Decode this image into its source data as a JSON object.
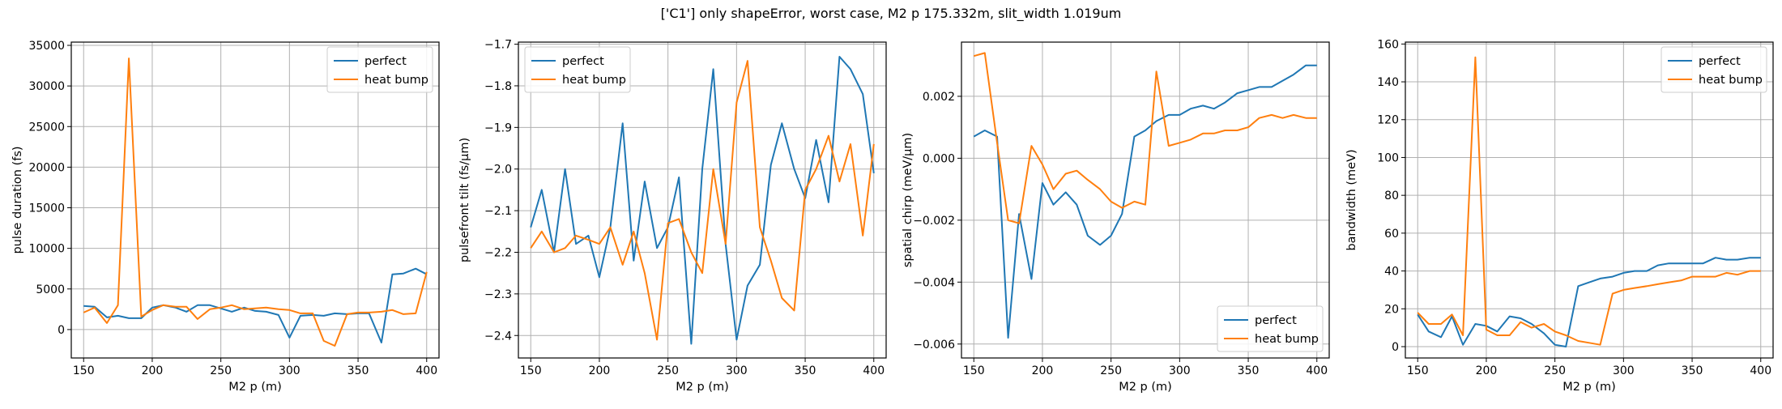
{
  "title": "['C1'] only shapeError, worst case, M2 p 175.332m, slit_width 1.019um",
  "colors": {
    "perfect": "#1f77b4",
    "heat_bump": "#ff7f0e"
  },
  "chart_data": [
    {
      "type": "line",
      "xlabel": "M2 p (m)",
      "ylabel": "pulse duration (fs)",
      "xlim": [
        141,
        409
      ],
      "ylim": [
        -3500,
        35400
      ],
      "xticks": [
        150,
        200,
        250,
        300,
        350,
        400
      ],
      "xtick_labels": [
        "150",
        "200",
        "250",
        "300",
        "350",
        "400"
      ],
      "yticks": [
        0,
        5000,
        10000,
        15000,
        20000,
        25000,
        30000,
        35000
      ],
      "ytick_labels": [
        "0",
        "5000",
        "10000",
        "15000",
        "20000",
        "25000",
        "30000",
        "35000"
      ],
      "grid": true,
      "legend_loc": "upper right",
      "x": [
        150,
        158,
        167,
        175,
        183,
        192,
        200,
        208,
        217,
        225,
        233,
        242,
        250,
        258,
        267,
        275,
        283,
        292,
        300,
        308,
        317,
        325,
        333,
        342,
        350,
        358,
        367,
        375,
        383,
        392,
        400
      ],
      "series": [
        {
          "name": "perfect",
          "color": "#1f77b4",
          "values": [
            2900,
            2800,
            1500,
            1700,
            1400,
            1400,
            2700,
            3000,
            2700,
            2200,
            3000,
            3000,
            2600,
            2200,
            2700,
            2300,
            2200,
            1800,
            -1000,
            1700,
            1800,
            1700,
            2000,
            1900,
            2000,
            2000,
            -1600,
            6800,
            6900,
            7500,
            6800
          ]
        },
        {
          "name": "heat bump",
          "color": "#ff7f0e",
          "values": [
            2100,
            2700,
            800,
            3000,
            33400,
            1600,
            2400,
            3000,
            2800,
            2800,
            1300,
            2500,
            2700,
            3000,
            2500,
            2600,
            2700,
            2500,
            2400,
            2000,
            2000,
            -1400,
            -2000,
            1900,
            2100,
            2100,
            2200,
            2400,
            1900,
            2000,
            7100
          ]
        }
      ]
    },
    {
      "type": "line",
      "xlabel": "M2 p (m)",
      "ylabel": "pulsefront tilt (fs/μm)",
      "xlim": [
        141,
        409
      ],
      "ylim": [
        -2.454,
        -1.695
      ],
      "xticks": [
        150,
        200,
        250,
        300,
        350,
        400
      ],
      "xtick_labels": [
        "150",
        "200",
        "250",
        "300",
        "350",
        "400"
      ],
      "yticks": [
        -2.4,
        -2.3,
        -2.2,
        -2.1,
        -2.0,
        -1.9,
        -1.8,
        -1.7
      ],
      "ytick_labels": [
        "−2.4",
        "−2.3",
        "−2.2",
        "−2.1",
        "−2.0",
        "−1.9",
        "−1.8",
        "−1.7"
      ],
      "grid": true,
      "legend_loc": "upper left",
      "x": [
        150,
        158,
        167,
        175,
        183,
        192,
        200,
        208,
        217,
        225,
        233,
        242,
        250,
        258,
        267,
        275,
        283,
        292,
        300,
        308,
        317,
        325,
        333,
        342,
        350,
        358,
        367,
        375,
        383,
        392,
        400
      ],
      "series": [
        {
          "name": "perfect",
          "color": "#1f77b4",
          "values": [
            -2.14,
            -2.05,
            -2.2,
            -2.0,
            -2.18,
            -2.16,
            -2.26,
            -2.14,
            -1.89,
            -2.22,
            -2.03,
            -2.19,
            -2.14,
            -2.02,
            -2.42,
            -2.0,
            -1.76,
            -2.18,
            -2.41,
            -2.28,
            -2.23,
            -1.99,
            -1.89,
            -2.0,
            -2.07,
            -1.93,
            -2.08,
            -1.73,
            -1.76,
            -1.82,
            -2.01
          ]
        },
        {
          "name": "heat bump",
          "color": "#ff7f0e",
          "values": [
            -2.19,
            -2.15,
            -2.2,
            -2.19,
            -2.16,
            -2.17,
            -2.18,
            -2.14,
            -2.23,
            -2.15,
            -2.25,
            -2.41,
            -2.13,
            -2.12,
            -2.2,
            -2.25,
            -2.0,
            -2.18,
            -1.84,
            -1.74,
            -2.14,
            -2.22,
            -2.31,
            -2.34,
            -2.05,
            -2.0,
            -1.92,
            -2.03,
            -1.94,
            -2.16,
            -1.94
          ]
        }
      ]
    },
    {
      "type": "line",
      "xlabel": "M2 p (m)",
      "ylabel": "spatial chirp (meV/μm)",
      "xlim": [
        141,
        409
      ],
      "ylim": [
        -0.00645,
        0.00375
      ],
      "xticks": [
        150,
        200,
        250,
        300,
        350,
        400
      ],
      "xtick_labels": [
        "150",
        "200",
        "250",
        "300",
        "350",
        "400"
      ],
      "yticks": [
        -0.006,
        -0.004,
        -0.002,
        0.0,
        0.002
      ],
      "ytick_labels": [
        "−0.006",
        "−0.004",
        "−0.002",
        "0.000",
        "0.002"
      ],
      "grid": true,
      "legend_loc": "lower right",
      "x": [
        150,
        158,
        167,
        175,
        183,
        192,
        200,
        208,
        217,
        225,
        233,
        242,
        250,
        258,
        267,
        275,
        283,
        292,
        300,
        308,
        317,
        325,
        333,
        342,
        350,
        358,
        367,
        375,
        383,
        392,
        400
      ],
      "series": [
        {
          "name": "perfect",
          "color": "#1f77b4",
          "values": [
            0.0007,
            0.0009,
            0.0007,
            -0.0058,
            -0.0018,
            -0.0039,
            -0.0008,
            -0.0015,
            -0.0011,
            -0.0015,
            -0.0025,
            -0.0028,
            -0.0025,
            -0.0018,
            0.0007,
            0.0009,
            0.0012,
            0.0014,
            0.0014,
            0.0016,
            0.0017,
            0.0016,
            0.0018,
            0.0021,
            0.0022,
            0.0023,
            0.0023,
            0.0025,
            0.0027,
            0.003,
            0.003
          ]
        },
        {
          "name": "heat bump",
          "color": "#ff7f0e",
          "values": [
            0.0033,
            0.0034,
            0.0005,
            -0.002,
            -0.0021,
            0.0004,
            -0.0002,
            -0.001,
            -0.0005,
            -0.0004,
            -0.0007,
            -0.001,
            -0.0014,
            -0.0016,
            -0.0014,
            -0.0015,
            0.0028,
            0.0004,
            0.0005,
            0.0006,
            0.0008,
            0.0008,
            0.0009,
            0.0009,
            0.001,
            0.0013,
            0.0014,
            0.0013,
            0.0014,
            0.0013,
            0.0013
          ]
        }
      ]
    },
    {
      "type": "line",
      "xlabel": "M2 p (m)",
      "ylabel": "bandwidth (meV)",
      "xlim": [
        141,
        409
      ],
      "ylim": [
        -6,
        161
      ],
      "xticks": [
        150,
        200,
        250,
        300,
        350,
        400
      ],
      "xtick_labels": [
        "150",
        "200",
        "250",
        "300",
        "350",
        "400"
      ],
      "yticks": [
        0,
        20,
        40,
        60,
        80,
        100,
        120,
        140,
        160
      ],
      "ytick_labels": [
        "0",
        "20",
        "40",
        "60",
        "80",
        "100",
        "120",
        "140",
        "160"
      ],
      "grid": true,
      "legend_loc": "upper right",
      "x": [
        150,
        158,
        167,
        175,
        183,
        192,
        200,
        208,
        217,
        225,
        233,
        242,
        250,
        258,
        267,
        275,
        283,
        292,
        300,
        308,
        317,
        325,
        333,
        342,
        350,
        358,
        367,
        375,
        383,
        392,
        400
      ],
      "series": [
        {
          "name": "perfect",
          "color": "#1f77b4",
          "values": [
            17,
            8,
            5,
            16,
            1,
            12,
            11,
            8,
            16,
            15,
            12,
            7,
            1,
            0,
            32,
            34,
            36,
            37,
            39,
            40,
            40,
            43,
            44,
            44,
            44,
            44,
            47,
            46,
            46,
            47,
            47
          ]
        },
        {
          "name": "heat bump",
          "color": "#ff7f0e",
          "values": [
            18,
            12,
            12,
            17,
            6,
            153,
            9,
            6,
            6,
            13,
            10,
            12,
            8,
            6,
            3,
            2,
            1,
            28,
            30,
            31,
            32,
            33,
            34,
            35,
            37,
            37,
            37,
            39,
            38,
            40,
            40
          ]
        }
      ]
    }
  ]
}
